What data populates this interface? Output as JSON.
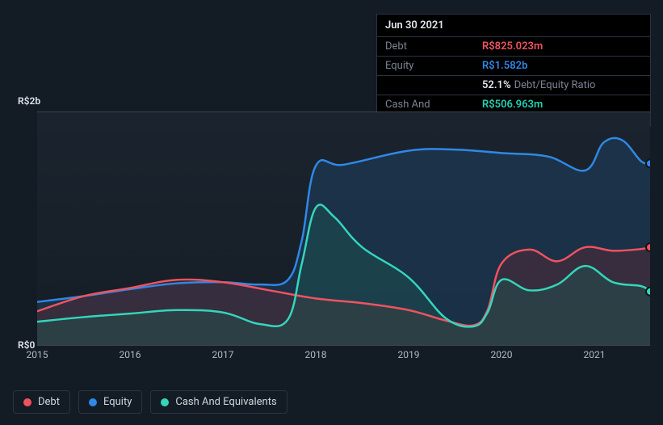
{
  "tooltip": {
    "date": "Jun 30 2021",
    "rows": [
      {
        "label": "Debt",
        "value": "R$825.023m",
        "color": "#ef5360"
      },
      {
        "label": "Equity",
        "value": "R$1.582b",
        "color": "#2f88e6"
      },
      {
        "label": "",
        "value": "52.1%",
        "suffix": "Debt/Equity Ratio",
        "color": "#e0e6ec"
      },
      {
        "label": "Cash And Equivalents",
        "value": "R$506.963m",
        "color": "#23d1b0"
      }
    ]
  },
  "chart": {
    "type": "area",
    "background_gradient": [
      "#1b242e",
      "#151d26"
    ],
    "grid_color": "#3a4552",
    "y_axis": {
      "min": 0,
      "max": 2000,
      "ticks": [
        {
          "value": 2000,
          "label": "R$2b"
        },
        {
          "value": 0,
          "label": "R$0"
        }
      ],
      "label_color": "#dfe5eb",
      "label_fontsize": 12
    },
    "x_axis": {
      "min": 2015,
      "max": 2021.6,
      "ticks": [
        2015,
        2016,
        2017,
        2018,
        2019,
        2020,
        2021
      ],
      "label_color": "#b0b8c0",
      "label_fontsize": 12
    },
    "series": [
      {
        "name": "Equity",
        "color": "#2f88e6",
        "fill": "#1e4060",
        "fill_opacity": 0.55,
        "line_width": 2.5,
        "data": [
          [
            2015.0,
            370
          ],
          [
            2015.5,
            420
          ],
          [
            2016.0,
            480
          ],
          [
            2016.5,
            530
          ],
          [
            2017.0,
            540
          ],
          [
            2017.4,
            520
          ],
          [
            2017.7,
            560
          ],
          [
            2017.85,
            900
          ],
          [
            2018.0,
            1540
          ],
          [
            2018.3,
            1550
          ],
          [
            2019.0,
            1670
          ],
          [
            2019.5,
            1680
          ],
          [
            2020.0,
            1650
          ],
          [
            2020.5,
            1620
          ],
          [
            2020.9,
            1500
          ],
          [
            2021.1,
            1740
          ],
          [
            2021.3,
            1760
          ],
          [
            2021.5,
            1582
          ],
          [
            2021.6,
            1560
          ]
        ]
      },
      {
        "name": "Debt",
        "color": "#ef5360",
        "fill": "#5a2a34",
        "fill_opacity": 0.45,
        "line_width": 2.5,
        "data": [
          [
            2015.0,
            290
          ],
          [
            2015.5,
            420
          ],
          [
            2016.0,
            490
          ],
          [
            2016.5,
            560
          ],
          [
            2017.0,
            540
          ],
          [
            2017.5,
            470
          ],
          [
            2018.0,
            400
          ],
          [
            2018.5,
            360
          ],
          [
            2019.0,
            300
          ],
          [
            2019.4,
            210
          ],
          [
            2019.7,
            170
          ],
          [
            2019.85,
            300
          ],
          [
            2020.0,
            700
          ],
          [
            2020.3,
            820
          ],
          [
            2020.6,
            720
          ],
          [
            2020.9,
            840
          ],
          [
            2021.2,
            810
          ],
          [
            2021.5,
            825
          ],
          [
            2021.6,
            840
          ]
        ]
      },
      {
        "name": "Cash And Equivalents",
        "color": "#34d6bb",
        "fill": "#1d5a52",
        "fill_opacity": 0.4,
        "line_width": 2.5,
        "data": [
          [
            2015.0,
            200
          ],
          [
            2015.5,
            240
          ],
          [
            2016.0,
            270
          ],
          [
            2016.5,
            300
          ],
          [
            2017.0,
            280
          ],
          [
            2017.4,
            180
          ],
          [
            2017.7,
            220
          ],
          [
            2017.85,
            700
          ],
          [
            2018.0,
            1180
          ],
          [
            2018.2,
            1100
          ],
          [
            2018.5,
            840
          ],
          [
            2019.0,
            580
          ],
          [
            2019.4,
            230
          ],
          [
            2019.7,
            160
          ],
          [
            2019.85,
            280
          ],
          [
            2020.0,
            560
          ],
          [
            2020.3,
            470
          ],
          [
            2020.6,
            520
          ],
          [
            2020.9,
            680
          ],
          [
            2021.2,
            540
          ],
          [
            2021.5,
            507
          ],
          [
            2021.6,
            460
          ]
        ]
      }
    ],
    "markers": [
      {
        "series": "Equity",
        "x": 2021.6,
        "y": 1560,
        "color": "#2f88e6"
      },
      {
        "series": "Debt",
        "x": 2021.6,
        "y": 840,
        "color": "#ef5360"
      },
      {
        "series": "Cash And Equivalents",
        "x": 2021.6,
        "y": 460,
        "color": "#34d6bb"
      }
    ]
  },
  "legend": {
    "items": [
      {
        "label": "Debt",
        "color": "#ef5360"
      },
      {
        "label": "Equity",
        "color": "#2f88e6"
      },
      {
        "label": "Cash And Equivalents",
        "color": "#34d6bb"
      }
    ],
    "border_color": "#2a3440",
    "text_color": "#cfd6dd"
  }
}
